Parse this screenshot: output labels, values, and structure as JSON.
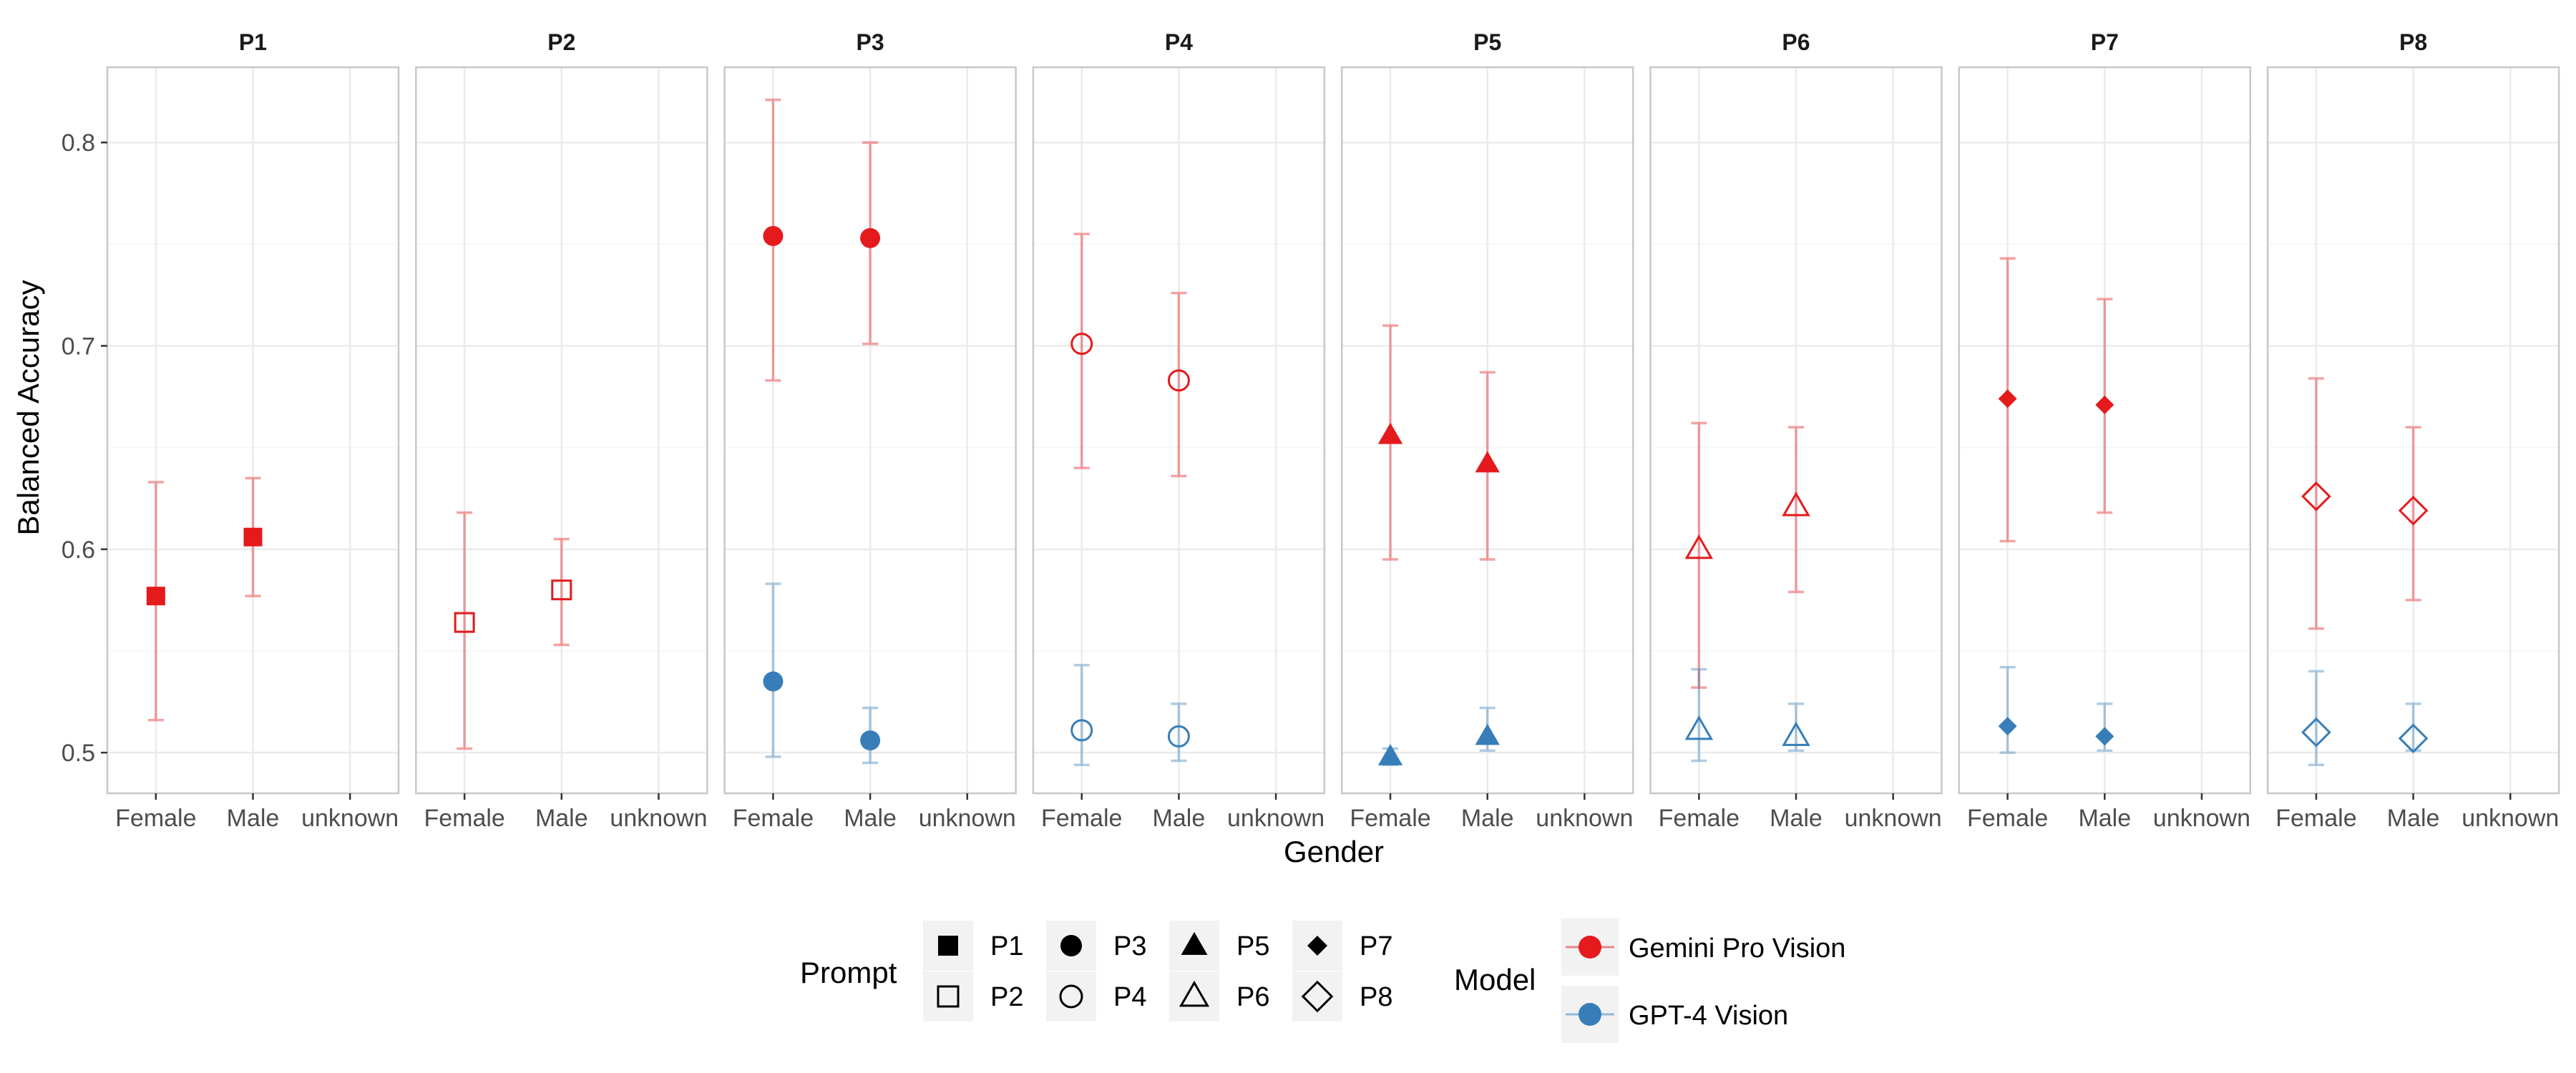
{
  "chart_data": {
    "type": "scatter",
    "xlabel": "Gender",
    "ylabel": "Balanced Accuracy",
    "categories": [
      "Female",
      "Male",
      "unknown"
    ],
    "ylim": [
      0.48,
      0.837
    ],
    "yticks": [
      0.5,
      0.6,
      0.7,
      0.8
    ],
    "ytick_labels": [
      "0.5",
      "0.6",
      "0.7",
      "0.8"
    ],
    "grid": true,
    "legend_position": "bottom",
    "colors": {
      "Gemini Pro Vision": "#e41a1c",
      "GPT-4 Vision": "#377eb8"
    },
    "shapes": {
      "P1": "square-filled",
      "P2": "square-open",
      "P3": "circle-filled",
      "P4": "circle-open",
      "P5": "triangle-filled",
      "P6": "triangle-open",
      "P7": "diamond-filled",
      "P8": "diamond-open"
    },
    "facets": [
      {
        "title": "P1",
        "series": [
          {
            "model": "Gemini Pro Vision",
            "points": [
              {
                "x": "Female",
                "y": 0.577,
                "ymin": 0.516,
                "ymax": 0.633
              },
              {
                "x": "Male",
                "y": 0.606,
                "ymin": 0.577,
                "ymax": 0.635
              }
            ]
          }
        ]
      },
      {
        "title": "P2",
        "series": [
          {
            "model": "Gemini Pro Vision",
            "points": [
              {
                "x": "Female",
                "y": 0.564,
                "ymin": 0.502,
                "ymax": 0.618
              },
              {
                "x": "Male",
                "y": 0.58,
                "ymin": 0.553,
                "ymax": 0.605
              }
            ]
          }
        ]
      },
      {
        "title": "P3",
        "series": [
          {
            "model": "Gemini Pro Vision",
            "points": [
              {
                "x": "Female",
                "y": 0.754,
                "ymin": 0.683,
                "ymax": 0.821
              },
              {
                "x": "Male",
                "y": 0.753,
                "ymin": 0.701,
                "ymax": 0.8
              }
            ]
          },
          {
            "model": "GPT-4 Vision",
            "points": [
              {
                "x": "Female",
                "y": 0.535,
                "ymin": 0.498,
                "ymax": 0.583
              },
              {
                "x": "Male",
                "y": 0.506,
                "ymin": 0.495,
                "ymax": 0.522
              }
            ]
          }
        ]
      },
      {
        "title": "P4",
        "series": [
          {
            "model": "Gemini Pro Vision",
            "points": [
              {
                "x": "Female",
                "y": 0.701,
                "ymin": 0.64,
                "ymax": 0.755
              },
              {
                "x": "Male",
                "y": 0.683,
                "ymin": 0.636,
                "ymax": 0.726
              }
            ]
          },
          {
            "model": "GPT-4 Vision",
            "points": [
              {
                "x": "Female",
                "y": 0.511,
                "ymin": 0.494,
                "ymax": 0.543
              },
              {
                "x": "Male",
                "y": 0.508,
                "ymin": 0.496,
                "ymax": 0.524
              }
            ]
          }
        ]
      },
      {
        "title": "P5",
        "series": [
          {
            "model": "Gemini Pro Vision",
            "points": [
              {
                "x": "Female",
                "y": 0.656,
                "ymin": 0.595,
                "ymax": 0.71
              },
              {
                "x": "Male",
                "y": 0.642,
                "ymin": 0.595,
                "ymax": 0.687
              }
            ]
          },
          {
            "model": "GPT-4 Vision",
            "points": [
              {
                "x": "Female",
                "y": 0.498,
                "ymin": 0.494,
                "ymax": 0.502
              },
              {
                "x": "Male",
                "y": 0.508,
                "ymin": 0.501,
                "ymax": 0.522
              }
            ]
          }
        ]
      },
      {
        "title": "P6",
        "series": [
          {
            "model": "Gemini Pro Vision",
            "points": [
              {
                "x": "Female",
                "y": 0.6,
                "ymin": 0.532,
                "ymax": 0.662
              },
              {
                "x": "Male",
                "y": 0.621,
                "ymin": 0.579,
                "ymax": 0.66
              }
            ]
          },
          {
            "model": "GPT-4 Vision",
            "points": [
              {
                "x": "Female",
                "y": 0.511,
                "ymin": 0.496,
                "ymax": 0.541
              },
              {
                "x": "Male",
                "y": 0.508,
                "ymin": 0.501,
                "ymax": 0.524
              }
            ]
          }
        ]
      },
      {
        "title": "P7",
        "series": [
          {
            "model": "Gemini Pro Vision",
            "points": [
              {
                "x": "Female",
                "y": 0.674,
                "ymin": 0.604,
                "ymax": 0.743
              },
              {
                "x": "Male",
                "y": 0.671,
                "ymin": 0.618,
                "ymax": 0.723
              }
            ]
          },
          {
            "model": "GPT-4 Vision",
            "points": [
              {
                "x": "Female",
                "y": 0.513,
                "ymin": 0.5,
                "ymax": 0.542
              },
              {
                "x": "Male",
                "y": 0.508,
                "ymin": 0.501,
                "ymax": 0.524
              }
            ]
          }
        ]
      },
      {
        "title": "P8",
        "series": [
          {
            "model": "Gemini Pro Vision",
            "points": [
              {
                "x": "Female",
                "y": 0.626,
                "ymin": 0.561,
                "ymax": 0.684
              },
              {
                "x": "Male",
                "y": 0.619,
                "ymin": 0.575,
                "ymax": 0.66
              }
            ]
          },
          {
            "model": "GPT-4 Vision",
            "points": [
              {
                "x": "Female",
                "y": 0.51,
                "ymin": 0.494,
                "ymax": 0.54
              },
              {
                "x": "Male",
                "y": 0.507,
                "ymin": 0.501,
                "ymax": 0.524
              }
            ]
          }
        ]
      }
    ],
    "legend": {
      "prompt_title": "Prompt",
      "prompt_entries": [
        "P1",
        "P2",
        "P3",
        "P4",
        "P5",
        "P6",
        "P7",
        "P8"
      ],
      "model_title": "Model",
      "model_entries": [
        "Gemini Pro Vision",
        "GPT-4 Vision"
      ]
    }
  }
}
